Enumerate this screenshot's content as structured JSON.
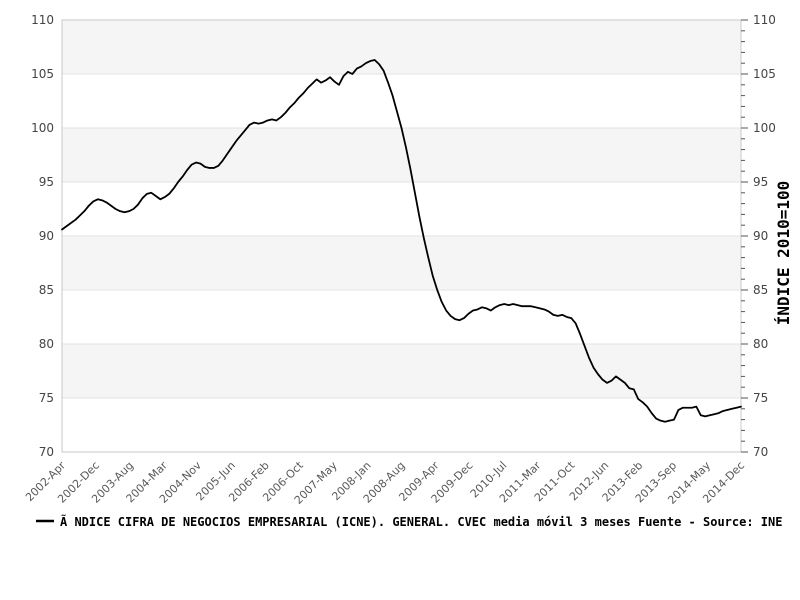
{
  "page": {
    "background": "#ffffff"
  },
  "chart_data": {
    "type": "line",
    "title": "",
    "legend_text": "Ã NDICE CIFRA DE NEGOCIOS EMPRESARIAL (ICNE). GENERAL. CVEC media móvil 3 meses  Fuente - Source: INE",
    "right_axis_title": "ÍNDICE 2010=100",
    "x_tick_labels": [
      "2002-Apr",
      "2002-Dec",
      "2003-Aug",
      "2004-Mar",
      "2004-Nov",
      "2005-Jun",
      "2006-Feb",
      "2006-Oct",
      "2007-May",
      "2008-Jan",
      "2008-Aug",
      "2009-Apr",
      "2009-Dec",
      "2010-Jul",
      "2011-Mar",
      "2011-Oct",
      "2012-Jun",
      "2013-Feb",
      "2013-Sep",
      "2014-May",
      "2014-Dec"
    ],
    "y_ticks": [
      70,
      75,
      80,
      85,
      90,
      95,
      100,
      105,
      110
    ],
    "y_minor_tick_step": 1,
    "ylim": [
      70,
      110
    ],
    "grid": "alternating-horizontal-bands",
    "legend_position": "bottom-left",
    "series": [
      {
        "name": "ICNE General, CVEC media móvil 3 meses",
        "color": "#000000",
        "x_start": "2002-Apr",
        "x_end": "2014-Dec",
        "frequency": "monthly",
        "values": [
          90.6,
          90.9,
          91.2,
          91.5,
          91.9,
          92.3,
          92.8,
          93.2,
          93.4,
          93.3,
          93.1,
          92.8,
          92.5,
          92.3,
          92.2,
          92.3,
          92.5,
          92.9,
          93.5,
          93.9,
          94.0,
          93.7,
          93.4,
          93.6,
          93.9,
          94.4,
          95.0,
          95.5,
          96.1,
          96.6,
          96.8,
          96.7,
          96.4,
          96.3,
          96.3,
          96.5,
          97.0,
          97.6,
          98.2,
          98.8,
          99.3,
          99.8,
          100.3,
          100.5,
          100.4,
          100.5,
          100.7,
          100.8,
          100.7,
          101.0,
          101.4,
          101.9,
          102.3,
          102.8,
          103.2,
          103.7,
          104.1,
          104.5,
          104.2,
          104.4,
          104.7,
          104.3,
          104.0,
          104.8,
          105.2,
          105.0,
          105.5,
          105.7,
          106.0,
          106.2,
          106.3,
          105.9,
          105.3,
          104.2,
          103.0,
          101.5,
          100.0,
          98.2,
          96.2,
          94.0,
          91.8,
          89.8,
          88.0,
          86.3,
          85.0,
          83.9,
          83.1,
          82.6,
          82.3,
          82.2,
          82.4,
          82.8,
          83.1,
          83.2,
          83.4,
          83.3,
          83.1,
          83.4,
          83.6,
          83.7,
          83.6,
          83.7,
          83.6,
          83.5,
          83.5,
          83.5,
          83.4,
          83.3,
          83.2,
          83.0,
          82.7,
          82.6,
          82.7,
          82.5,
          82.4,
          81.9,
          80.9,
          79.8,
          78.7,
          77.8,
          77.2,
          76.7,
          76.4,
          76.6,
          77.0,
          76.7,
          76.4,
          75.9,
          75.8,
          74.9,
          74.6,
          74.2,
          73.6,
          73.1,
          72.9,
          72.8,
          72.9,
          73.0,
          73.9,
          74.1,
          74.1,
          74.1,
          74.2,
          73.4,
          73.3,
          73.4,
          73.5,
          73.6,
          73.8,
          73.9,
          74.0,
          74.1,
          74.2
        ]
      }
    ],
    "style": {
      "band_color": "#f5f5f5",
      "grid_color": "#e3e3e3",
      "border_color": "#c9c9c9",
      "tick_mark_color": "#555555",
      "x_tick_text_color": "#595959",
      "y_tick_text_color": "#444444",
      "line_color": "#000000"
    }
  }
}
